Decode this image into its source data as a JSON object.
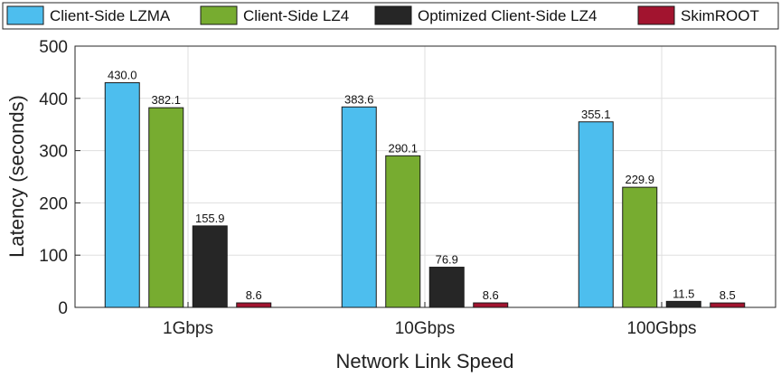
{
  "chart_data": {
    "type": "bar",
    "categories": [
      "1Gbps",
      "10Gbps",
      "100Gbps"
    ],
    "series": [
      {
        "name": "Client-Side LZMA",
        "color": "#4dbeee",
        "values": [
          430.0,
          383.6,
          355.1
        ]
      },
      {
        "name": "Client-Side LZ4",
        "color": "#77ac30",
        "values": [
          382.1,
          290.1,
          229.9
        ]
      },
      {
        "name": "Optimized Client-Side LZ4",
        "color": "#262626",
        "values": [
          155.9,
          76.9,
          11.5
        ]
      },
      {
        "name": "SkimROOT",
        "color": "#a2142f",
        "values": [
          8.6,
          8.6,
          8.5
        ]
      }
    ],
    "data_labels": [
      [
        "430.0",
        "383.6",
        "355.1"
      ],
      [
        "382.1",
        "290.1",
        "229.9"
      ],
      [
        "155.9",
        "76.9",
        "11.5"
      ],
      [
        "8.6",
        "8.6",
        "8.5"
      ]
    ],
    "xlabel": "Network Link Speed",
    "ylabel": "Latency (seconds)",
    "ylim": [
      0,
      500
    ],
    "yticks": [
      0,
      100,
      200,
      300,
      400,
      500
    ],
    "grid": true,
    "legend_placement": "top"
  }
}
